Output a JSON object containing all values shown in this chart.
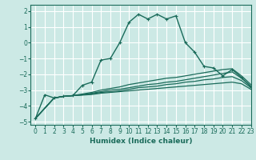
{
  "xlabel": "Humidex (Indice chaleur)",
  "xlim": [
    -0.5,
    23
  ],
  "ylim": [
    -5.2,
    2.4
  ],
  "xticks": [
    0,
    1,
    2,
    3,
    4,
    5,
    6,
    7,
    8,
    9,
    10,
    11,
    12,
    13,
    14,
    15,
    16,
    17,
    18,
    19,
    20,
    21,
    22,
    23
  ],
  "yticks": [
    -5,
    -4,
    -3,
    -2,
    -1,
    0,
    1,
    2
  ],
  "bg_color": "#cce9e5",
  "line_color": "#1a6b5a",
  "grid_color": "#ffffff",
  "lines": [
    {
      "x": [
        0,
        1,
        2,
        3,
        4,
        5,
        6,
        7,
        8,
        9,
        10,
        11,
        12,
        13,
        14,
        15,
        16,
        17,
        18,
        19,
        20,
        21,
        22,
        23
      ],
      "y": [
        -4.8,
        -3.3,
        -3.5,
        -3.4,
        -3.35,
        -2.7,
        -2.5,
        -1.1,
        -1.0,
        0.0,
        1.3,
        1.8,
        1.5,
        1.8,
        1.5,
        1.7,
        0.0,
        -0.6,
        -1.5,
        -1.6,
        -2.1,
        -1.7,
        -2.2,
        -2.8
      ],
      "marker": true,
      "lw": 1.0
    },
    {
      "x": [
        0,
        2,
        3,
        4,
        5,
        6,
        7,
        8,
        9,
        10,
        11,
        12,
        13,
        14,
        15,
        16,
        17,
        18,
        19,
        20,
        21,
        22,
        23
      ],
      "y": [
        -4.8,
        -3.5,
        -3.4,
        -3.35,
        -3.25,
        -3.15,
        -3.0,
        -2.9,
        -2.8,
        -2.65,
        -2.55,
        -2.45,
        -2.35,
        -2.25,
        -2.2,
        -2.1,
        -2.0,
        -1.9,
        -1.8,
        -1.7,
        -1.65,
        -2.1,
        -2.65
      ],
      "marker": false,
      "lw": 0.9
    },
    {
      "x": [
        0,
        2,
        3,
        4,
        5,
        6,
        7,
        8,
        9,
        10,
        11,
        12,
        13,
        14,
        15,
        16,
        17,
        18,
        19,
        20,
        21,
        22,
        23
      ],
      "y": [
        -4.8,
        -3.5,
        -3.4,
        -3.35,
        -3.3,
        -3.2,
        -3.1,
        -3.0,
        -2.95,
        -2.85,
        -2.75,
        -2.65,
        -2.6,
        -2.5,
        -2.45,
        -2.35,
        -2.25,
        -2.15,
        -2.05,
        -1.95,
        -1.85,
        -2.25,
        -2.75
      ],
      "marker": false,
      "lw": 0.9
    },
    {
      "x": [
        0,
        2,
        3,
        4,
        5,
        6,
        7,
        8,
        9,
        10,
        11,
        12,
        13,
        14,
        15,
        16,
        17,
        18,
        19,
        20,
        21,
        22,
        23
      ],
      "y": [
        -4.8,
        -3.5,
        -3.4,
        -3.35,
        -3.3,
        -3.25,
        -3.15,
        -3.1,
        -3.05,
        -2.95,
        -2.85,
        -2.8,
        -2.75,
        -2.65,
        -2.6,
        -2.5,
        -2.45,
        -2.35,
        -2.3,
        -2.2,
        -2.15,
        -2.4,
        -2.85
      ],
      "marker": false,
      "lw": 0.9
    },
    {
      "x": [
        0,
        2,
        3,
        4,
        5,
        6,
        7,
        8,
        9,
        10,
        11,
        12,
        13,
        14,
        15,
        16,
        17,
        18,
        19,
        20,
        21,
        22,
        23
      ],
      "y": [
        -4.8,
        -3.5,
        -3.4,
        -3.35,
        -3.32,
        -3.28,
        -3.2,
        -3.15,
        -3.1,
        -3.05,
        -3.0,
        -2.95,
        -2.9,
        -2.85,
        -2.8,
        -2.75,
        -2.7,
        -2.65,
        -2.6,
        -2.55,
        -2.5,
        -2.6,
        -2.95
      ],
      "marker": false,
      "lw": 0.9
    }
  ]
}
